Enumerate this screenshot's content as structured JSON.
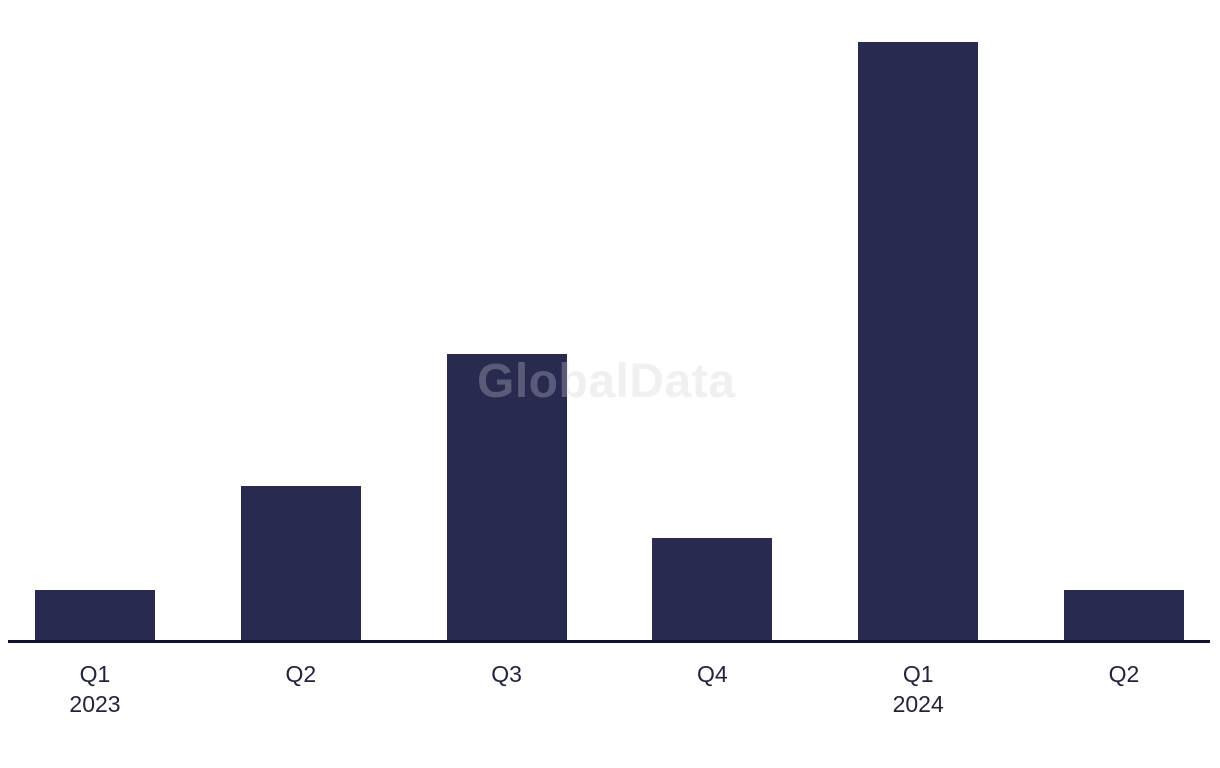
{
  "watermark": {
    "text": "GlobalData"
  },
  "colors": {
    "background": "#ffffff",
    "bar": "#282a4f",
    "axis_line": "#10122c",
    "label_text": "#22233c",
    "watermark_text": "rgba(205,206,214,0.30)"
  },
  "x_axis": {
    "labels": [
      {
        "quarter": "Q1",
        "year": "2023"
      },
      {
        "quarter": "Q2",
        "year": ""
      },
      {
        "quarter": "Q3",
        "year": ""
      },
      {
        "quarter": "Q4",
        "year": ""
      },
      {
        "quarter": "Q1",
        "year": "2024"
      },
      {
        "quarter": "Q2",
        "year": ""
      }
    ]
  },
  "chart_data": {
    "type": "bar",
    "categories": [
      "Q1 2023",
      "Q2 2023",
      "Q3 2023",
      "Q4 2023",
      "Q1 2024",
      "Q2 2024"
    ],
    "values": [
      51,
      155,
      287,
      103,
      599,
      51
    ],
    "values_unit": "relative bar height in pixels (no y-axis scale shown in image)",
    "values_pct_of_max": [
      8.5,
      25.9,
      47.9,
      17.2,
      100,
      8.5
    ],
    "title": "",
    "xlabel": "",
    "ylabel": "",
    "ylim": [
      0,
      599
    ],
    "legend": "none",
    "gridlines": false,
    "bar_color": "#282a4f",
    "watermark": "GlobalData"
  }
}
